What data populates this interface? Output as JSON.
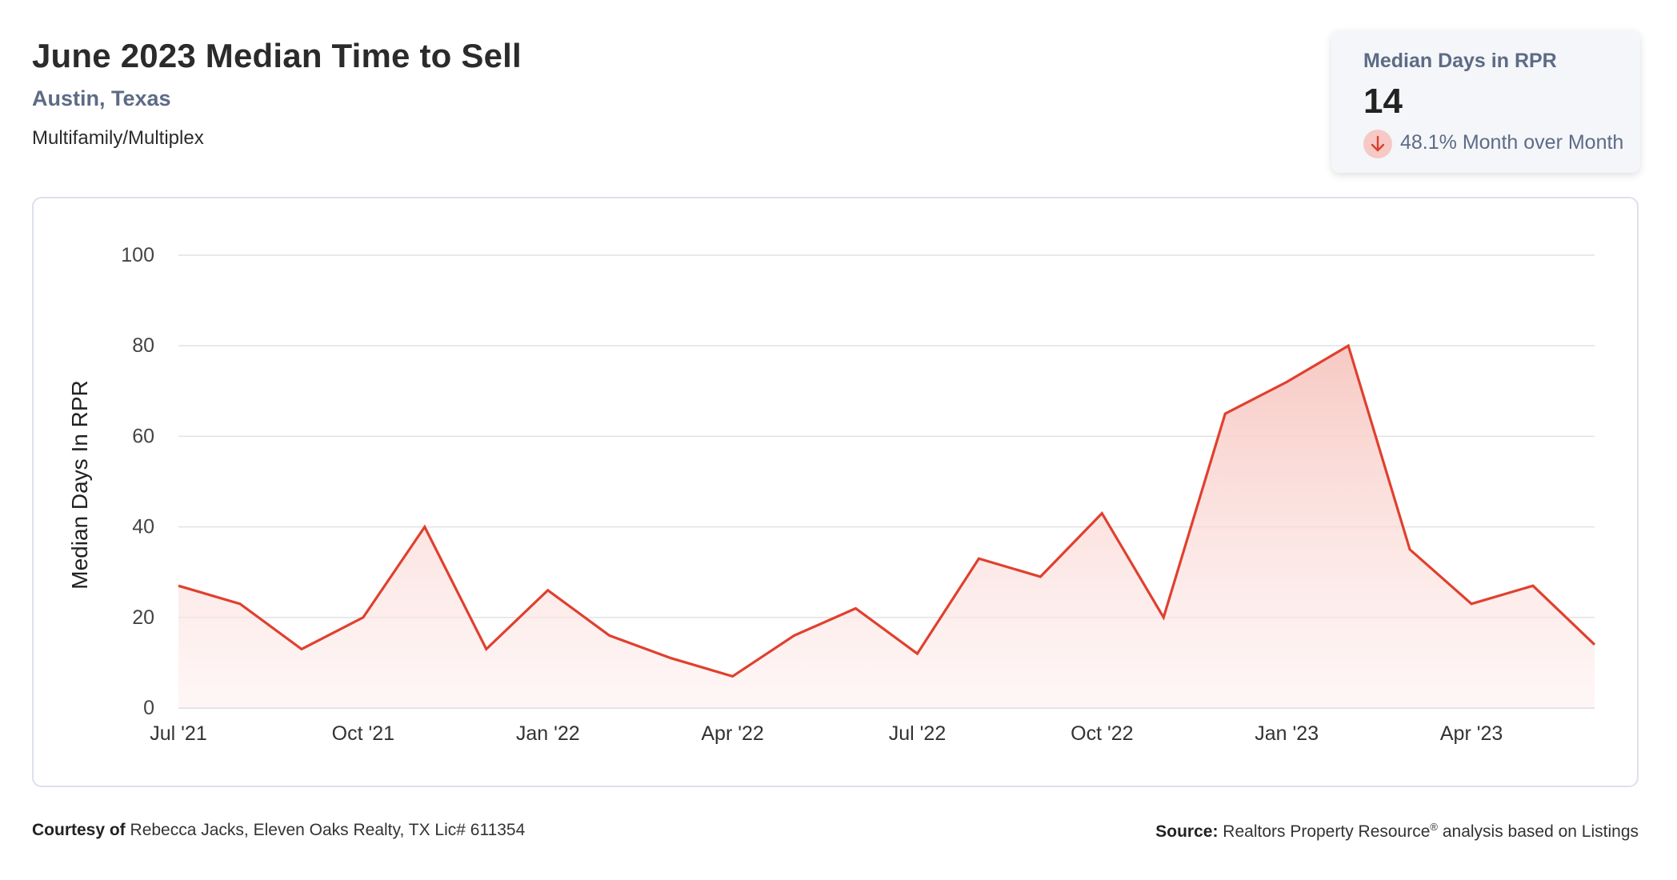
{
  "header": {
    "title": "June 2023 Median Time to Sell",
    "location": "Austin, Texas",
    "property_type": "Multifamily/Multiplex"
  },
  "stat_card": {
    "label": "Median Days in RPR",
    "value": "14",
    "change_text": "48.1% Month over Month",
    "change_icon": "arrow-down-icon",
    "change_direction": "down"
  },
  "footer": {
    "courtesy_label": "Courtesy of",
    "courtesy_text": "Rebecca Jacks, Eleven Oaks Realty, TX Lic# 611354",
    "source_label": "Source:",
    "source_text": "Realtors Property Resource",
    "source_mark": "®",
    "source_suffix": "analysis based on Listings"
  },
  "colors": {
    "line": "#e0402e",
    "area_top": "#f7c6c0",
    "gridline": "#e2e2e2",
    "stat_label": "#5d6b85"
  },
  "chart_data": {
    "type": "area",
    "ylabel": "Median Days In RPR",
    "xlabel": "",
    "ylim": [
      0,
      100
    ],
    "yticks": [
      0,
      20,
      40,
      60,
      80,
      100
    ],
    "grid": true,
    "x": [
      "Jul '21",
      "Aug '21",
      "Sep '21",
      "Oct '21",
      "Nov '21",
      "Dec '21",
      "Jan '22",
      "Feb '22",
      "Mar '22",
      "Apr '22",
      "May '22",
      "Jun '22",
      "Jul '22",
      "Aug '22",
      "Sep '22",
      "Oct '22",
      "Nov '22",
      "Dec '22",
      "Jan '23",
      "Feb '23",
      "Mar '23",
      "Apr '23",
      "May '23",
      "Jun '23"
    ],
    "xtick_labels": [
      "Jul '21",
      "Oct '21",
      "Jan '22",
      "Apr '22",
      "Jul '22",
      "Oct '22",
      "Jan '23",
      "Apr '23"
    ],
    "series": [
      {
        "values": [
          27,
          23,
          13,
          20,
          40,
          13,
          26,
          16,
          11,
          7,
          16,
          22,
          12,
          33,
          29,
          43,
          20,
          65,
          72,
          80,
          35,
          23,
          27,
          14
        ]
      }
    ]
  }
}
